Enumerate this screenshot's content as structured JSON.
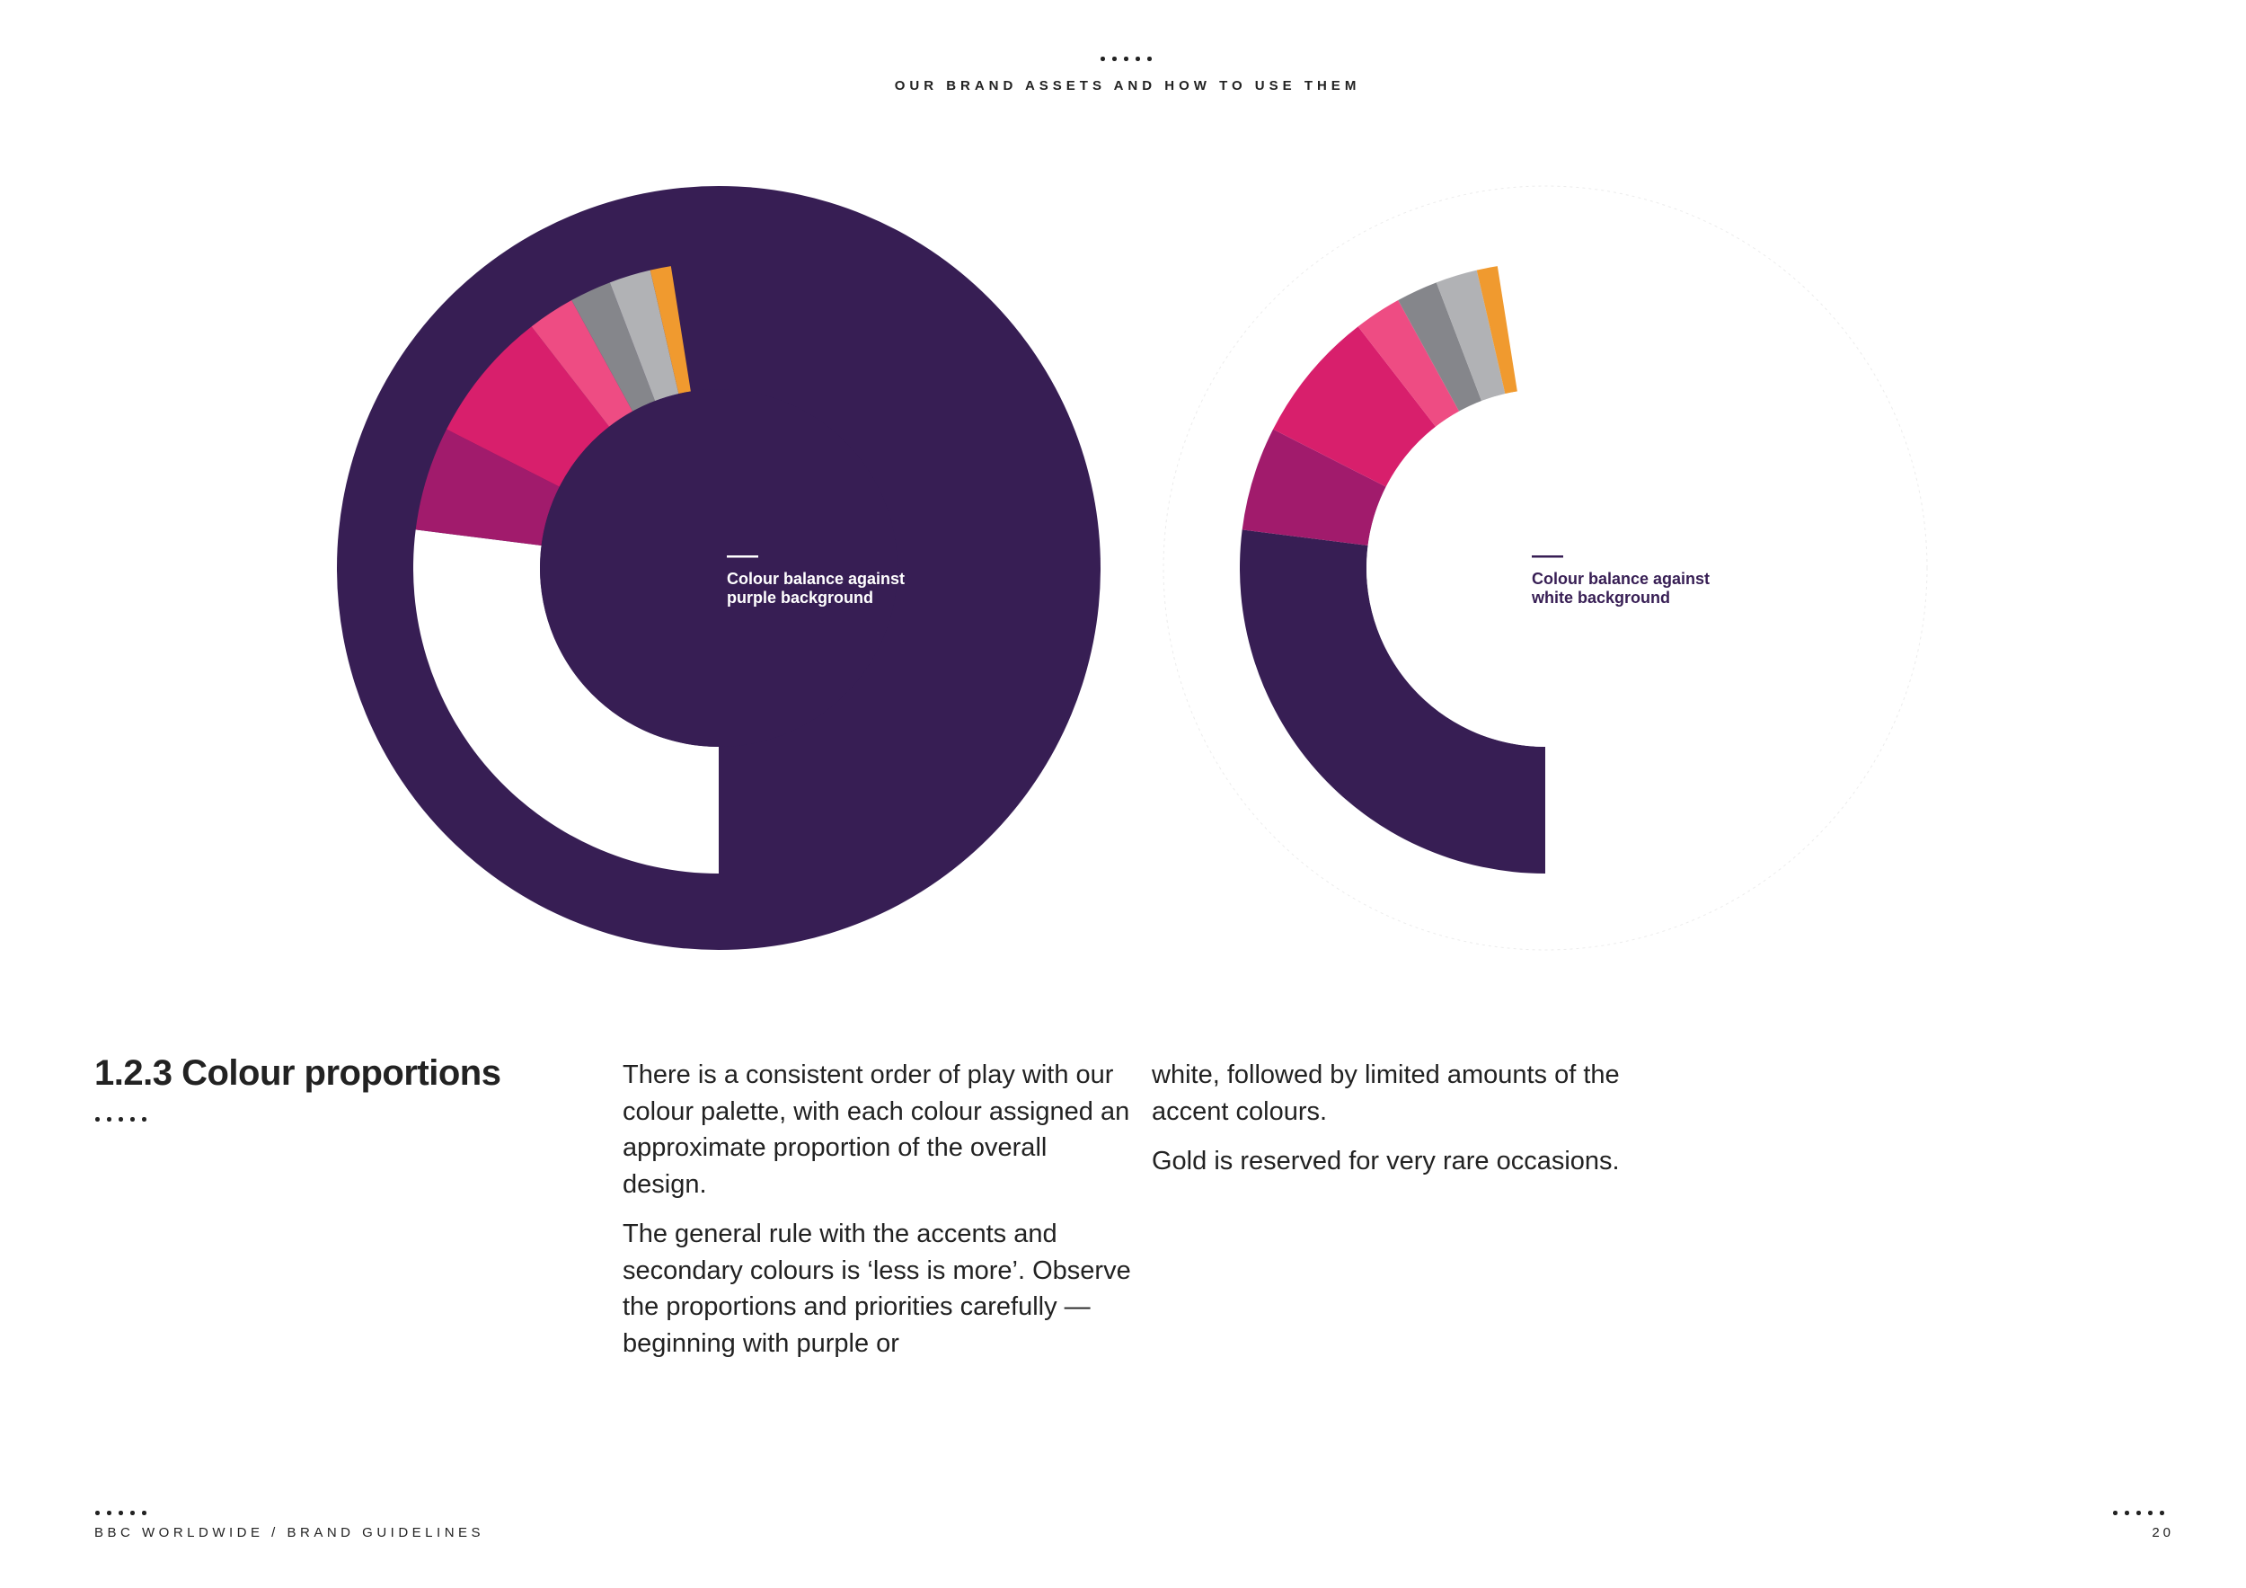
{
  "header": {
    "title": "OUR BRAND ASSETS AND HOW TO USE THEM"
  },
  "colors": {
    "purple": "#371e54",
    "plum": "#a11b6c",
    "magenta": "#d81f6c",
    "pink": "#ee4c83",
    "dark_grey": "#85868b",
    "light_grey": "#b1b2b5",
    "gold": "#f09a2f",
    "white": "#ffffff"
  },
  "charts": [
    {
      "caption_line1": "Colour balance against",
      "caption_line2": "purple background",
      "background": "purple",
      "segments": [
        {
          "color": "white",
          "proportion": 0.27
        },
        {
          "color": "plum",
          "proportion": 0.055
        },
        {
          "color": "magenta",
          "proportion": 0.07
        },
        {
          "color": "pink",
          "proportion": 0.025
        },
        {
          "color": "dark_grey",
          "proportion": 0.022
        },
        {
          "color": "light_grey",
          "proportion": 0.022
        },
        {
          "color": "gold",
          "proportion": 0.011
        }
      ]
    },
    {
      "caption_line1": "Colour balance against",
      "caption_line2": "white background",
      "background": "white",
      "segments": [
        {
          "color": "purple",
          "proportion": 0.27
        },
        {
          "color": "plum",
          "proportion": 0.055
        },
        {
          "color": "magenta",
          "proportion": 0.07
        },
        {
          "color": "pink",
          "proportion": 0.025
        },
        {
          "color": "dark_grey",
          "proportion": 0.022
        },
        {
          "color": "light_grey",
          "proportion": 0.022
        },
        {
          "color": "gold",
          "proportion": 0.011
        }
      ]
    }
  ],
  "section": {
    "title": "1.2.3 Colour proportions",
    "col1_p1": "There is a consistent order of play with our colour palette, with each colour assigned an approximate proportion of the overall design.",
    "col1_p2": "The general rule with the accents and secondary colours is ‘less is more’. Observe the proportions and priorities carefully — beginning with purple or",
    "col2_p1": "white, followed by limited amounts of the accent colours.",
    "col2_p2": "Gold is reserved for very rare occasions."
  },
  "footer": {
    "left": "BBC WORLDWIDE / BRAND GUIDELINES",
    "page_number": "20"
  }
}
